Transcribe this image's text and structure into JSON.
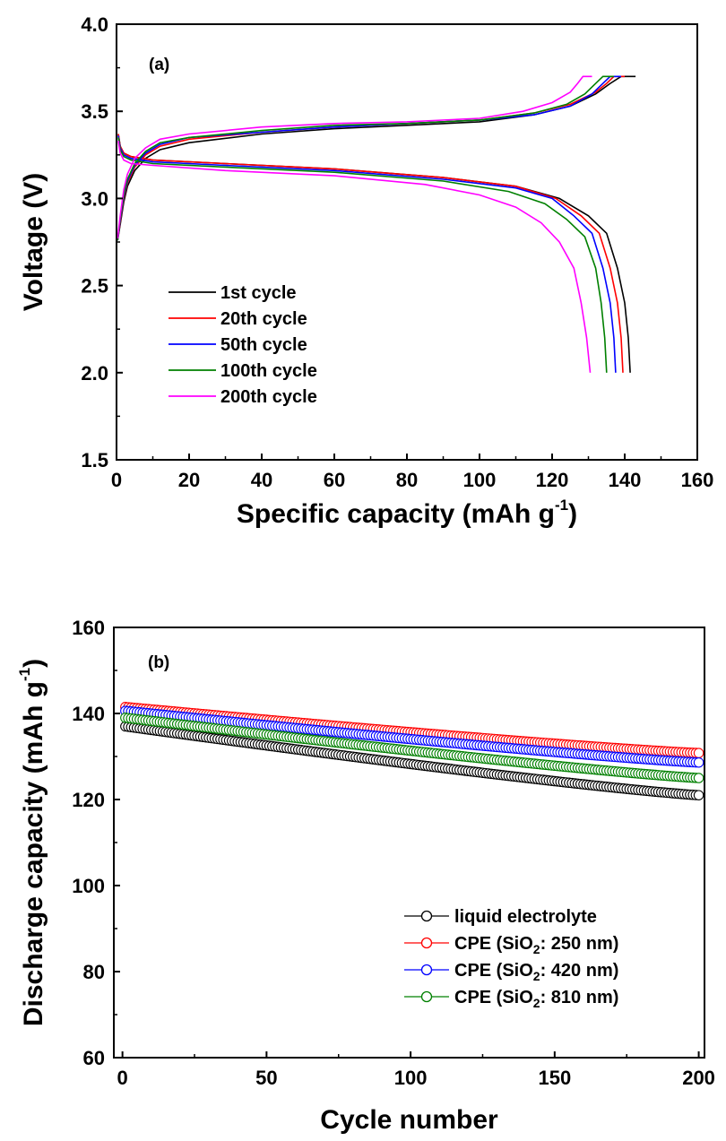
{
  "chart_data": [
    {
      "type": "line",
      "panel_label": "(a)",
      "xlabel": "Specific capacity (mAh g",
      "xlabel_sup": "-1",
      "xlabel_end": ")",
      "ylabel": "Voltage (V)",
      "xlim": [
        0,
        160
      ],
      "ylim": [
        1.5,
        4.0
      ],
      "xticks": [
        0,
        20,
        40,
        60,
        80,
        100,
        120,
        140,
        160
      ],
      "yticks": [
        1.5,
        2.0,
        2.5,
        3.0,
        3.5,
        4.0
      ],
      "ytick_labels": [
        "1.5",
        "2.0",
        "2.5",
        "3.0",
        "3.5",
        "4.0"
      ],
      "legend_position": "left",
      "series": [
        {
          "name": "1st cycle",
          "color": "#000000",
          "charge": [
            [
              0.3,
              2.76
            ],
            [
              1,
              2.85
            ],
            [
              2,
              2.98
            ],
            [
              3,
              3.07
            ],
            [
              5,
              3.16
            ],
            [
              8,
              3.23
            ],
            [
              12,
              3.28
            ],
            [
              20,
              3.32
            ],
            [
              40,
              3.37
            ],
            [
              60,
              3.4
            ],
            [
              80,
              3.42
            ],
            [
              100,
              3.44
            ],
            [
              115,
              3.48
            ],
            [
              125,
              3.53
            ],
            [
              132,
              3.6
            ],
            [
              136,
              3.66
            ],
            [
              139,
              3.7
            ],
            [
              143,
              3.7
            ]
          ],
          "discharge": [
            [
              0.5,
              3.37
            ],
            [
              1,
              3.3
            ],
            [
              2,
              3.26
            ],
            [
              4,
              3.24
            ],
            [
              10,
              3.22
            ],
            [
              30,
              3.2
            ],
            [
              60,
              3.17
            ],
            [
              90,
              3.12
            ],
            [
              110,
              3.07
            ],
            [
              122,
              3.0
            ],
            [
              130,
              2.9
            ],
            [
              135,
              2.8
            ],
            [
              138,
              2.6
            ],
            [
              140,
              2.4
            ],
            [
              141,
              2.2
            ],
            [
              141.5,
              2.0
            ]
          ]
        },
        {
          "name": "20th cycle",
          "color": "#ff0000",
          "charge": [
            [
              0.3,
              2.76
            ],
            [
              1,
              2.86
            ],
            [
              2,
              3.0
            ],
            [
              3,
              3.09
            ],
            [
              5,
              3.18
            ],
            [
              8,
              3.25
            ],
            [
              12,
              3.3
            ],
            [
              20,
              3.34
            ],
            [
              40,
              3.38
            ],
            [
              60,
              3.41
            ],
            [
              80,
              3.43
            ],
            [
              100,
              3.45
            ],
            [
              115,
              3.49
            ],
            [
              125,
              3.54
            ],
            [
              132,
              3.61
            ],
            [
              135,
              3.66
            ],
            [
              137,
              3.7
            ],
            [
              140,
              3.7
            ]
          ],
          "discharge": [
            [
              0.5,
              3.37
            ],
            [
              1,
              3.3
            ],
            [
              2,
              3.26
            ],
            [
              4,
              3.24
            ],
            [
              10,
              3.22
            ],
            [
              30,
              3.2
            ],
            [
              60,
              3.17
            ],
            [
              90,
              3.12
            ],
            [
              110,
              3.07
            ],
            [
              121,
              3.0
            ],
            [
              128,
              2.9
            ],
            [
              133,
              2.8
            ],
            [
              136,
              2.6
            ],
            [
              138,
              2.4
            ],
            [
              139,
              2.2
            ],
            [
              139.5,
              2.0
            ]
          ]
        },
        {
          "name": "50th cycle",
          "color": "#0000ff",
          "charge": [
            [
              0.3,
              2.76
            ],
            [
              1,
              2.87
            ],
            [
              2,
              3.01
            ],
            [
              3,
              3.1
            ],
            [
              5,
              3.19
            ],
            [
              8,
              3.26
            ],
            [
              12,
              3.31
            ],
            [
              20,
              3.35
            ],
            [
              40,
              3.38
            ],
            [
              60,
              3.41
            ],
            [
              80,
              3.43
            ],
            [
              100,
              3.45
            ],
            [
              115,
              3.48
            ],
            [
              125,
              3.53
            ],
            [
              131,
              3.6
            ],
            [
              134,
              3.66
            ],
            [
              136,
              3.7
            ],
            [
              139,
              3.7
            ]
          ],
          "discharge": [
            [
              0.5,
              3.36
            ],
            [
              1,
              3.29
            ],
            [
              2,
              3.25
            ],
            [
              4,
              3.23
            ],
            [
              10,
              3.21
            ],
            [
              30,
              3.19
            ],
            [
              60,
              3.16
            ],
            [
              90,
              3.11
            ],
            [
              110,
              3.06
            ],
            [
              120,
              3.0
            ],
            [
              126,
              2.9
            ],
            [
              131,
              2.8
            ],
            [
              134,
              2.6
            ],
            [
              136,
              2.4
            ],
            [
              137,
              2.2
            ],
            [
              137.5,
              2.0
            ]
          ]
        },
        {
          "name": "100th cycle",
          "color": "#008000",
          "charge": [
            [
              0.3,
              2.76
            ],
            [
              1,
              2.88
            ],
            [
              2,
              3.02
            ],
            [
              3,
              3.11
            ],
            [
              5,
              3.2
            ],
            [
              8,
              3.27
            ],
            [
              12,
              3.32
            ],
            [
              20,
              3.35
            ],
            [
              40,
              3.39
            ],
            [
              60,
              3.42
            ],
            [
              80,
              3.43
            ],
            [
              100,
              3.45
            ],
            [
              115,
              3.49
            ],
            [
              124,
              3.54
            ],
            [
              129,
              3.6
            ],
            [
              132,
              3.66
            ],
            [
              134,
              3.7
            ],
            [
              137,
              3.7
            ]
          ],
          "discharge": [
            [
              0.5,
              3.35
            ],
            [
              1,
              3.28
            ],
            [
              2,
              3.24
            ],
            [
              4,
              3.22
            ],
            [
              10,
              3.2
            ],
            [
              30,
              3.18
            ],
            [
              60,
              3.15
            ],
            [
              90,
              3.1
            ],
            [
              108,
              3.04
            ],
            [
              118,
              2.97
            ],
            [
              124,
              2.88
            ],
            [
              129,
              2.78
            ],
            [
              132,
              2.6
            ],
            [
              133.5,
              2.4
            ],
            [
              134.5,
              2.2
            ],
            [
              135,
              2.0
            ]
          ]
        },
        {
          "name": "200th cycle",
          "color": "#ff00ff",
          "charge": [
            [
              0.3,
              2.77
            ],
            [
              1,
              2.9
            ],
            [
              2,
              3.05
            ],
            [
              3,
              3.14
            ],
            [
              5,
              3.23
            ],
            [
              8,
              3.29
            ],
            [
              12,
              3.34
            ],
            [
              20,
              3.37
            ],
            [
              40,
              3.41
            ],
            [
              60,
              3.43
            ],
            [
              80,
              3.44
            ],
            [
              100,
              3.46
            ],
            [
              112,
              3.5
            ],
            [
              120,
              3.55
            ],
            [
              125,
              3.61
            ],
            [
              127,
              3.66
            ],
            [
              128.5,
              3.7
            ],
            [
              131,
              3.7
            ]
          ],
          "discharge": [
            [
              0.5,
              3.33
            ],
            [
              1,
              3.26
            ],
            [
              2,
              3.22
            ],
            [
              4,
              3.2
            ],
            [
              10,
              3.19
            ],
            [
              30,
              3.16
            ],
            [
              60,
              3.13
            ],
            [
              85,
              3.08
            ],
            [
              100,
              3.02
            ],
            [
              110,
              2.95
            ],
            [
              117,
              2.86
            ],
            [
              122,
              2.75
            ],
            [
              126,
              2.6
            ],
            [
              128,
              2.4
            ],
            [
              129.5,
              2.2
            ],
            [
              130.5,
              2.0
            ]
          ]
        }
      ]
    },
    {
      "type": "scatter",
      "panel_label": "(b)",
      "xlabel": "Cycle number",
      "ylabel": "Discharge capacity (mAh g",
      "ylabel_sup": "-1",
      "ylabel_end": ")",
      "xlim": [
        -3,
        202
      ],
      "ylim": [
        60,
        160
      ],
      "xticks": [
        0,
        50,
        100,
        150,
        200
      ],
      "yticks": [
        60,
        80,
        100,
        120,
        140,
        160
      ],
      "legend_position": "bottom-right",
      "series": [
        {
          "name": "liquid electrolyte",
          "name_plain": "",
          "name_sub": "",
          "name_end": "",
          "color": "#000000",
          "start": 137.0,
          "end": 121.0
        },
        {
          "name": "",
          "name_plain": "CPE (SiO",
          "name_sub": "2",
          "name_end": ": 250 nm)",
          "color": "#ff0000",
          "start": 141.5,
          "end": 130.8
        },
        {
          "name": "",
          "name_plain": "CPE (SiO",
          "name_sub": "2",
          "name_end": ": 420 nm)",
          "color": "#0000ff",
          "start": 140.6,
          "end": 128.6
        },
        {
          "name": "",
          "name_plain": "CPE (SiO",
          "name_sub": "2",
          "name_end": ": 810 nm)",
          "color": "#008000",
          "start": 139.0,
          "end": 125.0
        }
      ]
    }
  ]
}
